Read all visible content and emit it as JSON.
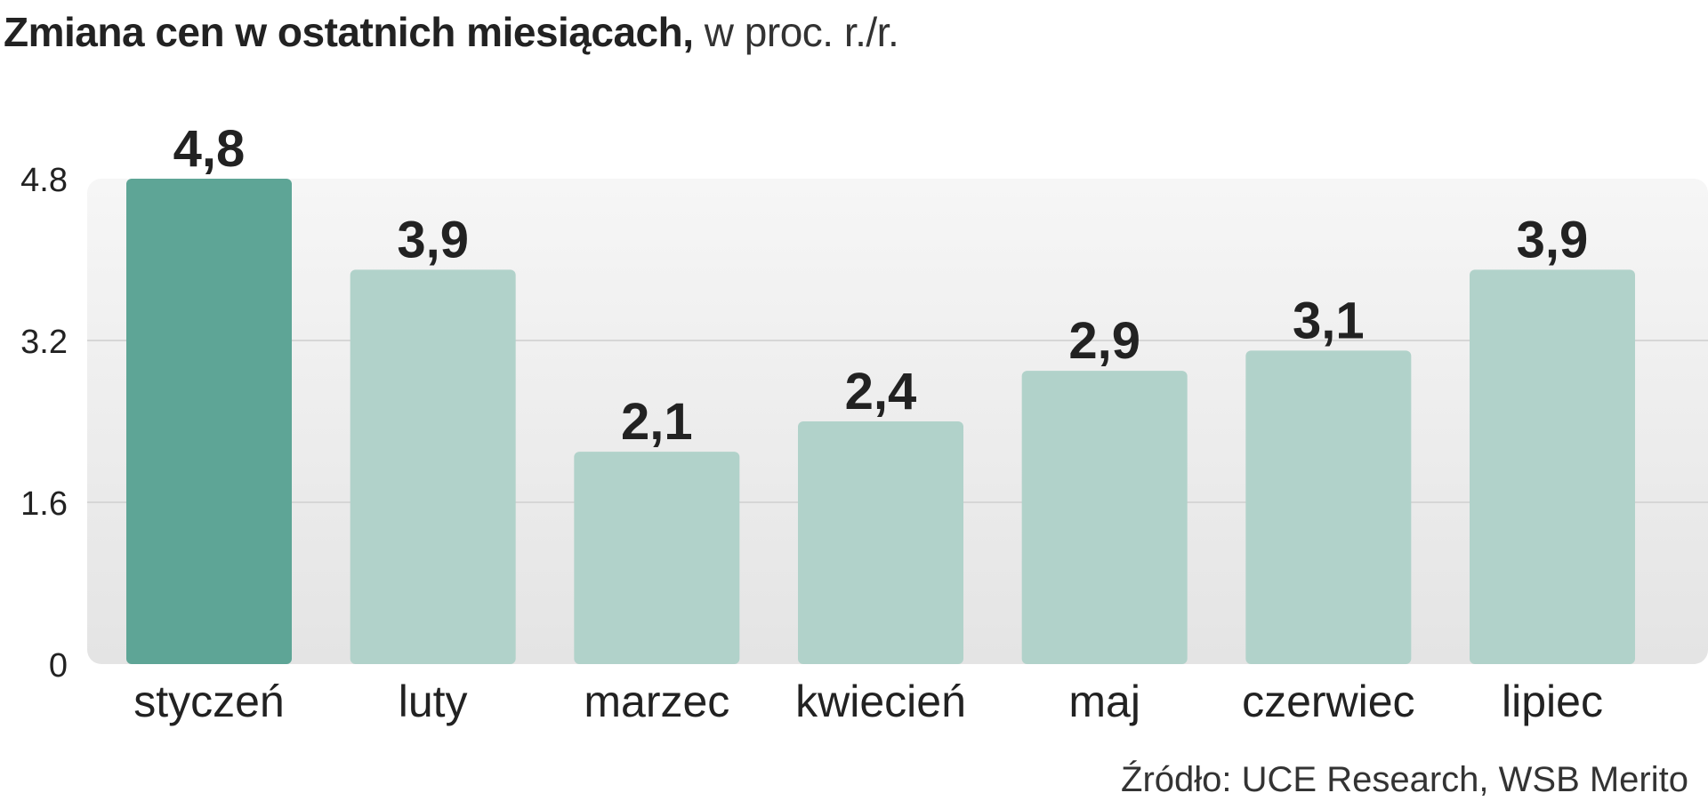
{
  "title": "Zmiana cen w ostatnich miesiącach,",
  "subtitle": "w proc. r./r.",
  "source": "Źródło: UCE Research, WSB Merito",
  "chart_data": {
    "type": "bar",
    "title": "Zmiana cen w ostatnich miesiącach,",
    "subtitle": "w proc. r./r.",
    "categories": [
      "styczeń",
      "luty",
      "marzec",
      "kwiecień",
      "maj",
      "czerwiec",
      "lipiec"
    ],
    "values": [
      4.8,
      3.9,
      2.1,
      2.4,
      2.9,
      3.1,
      3.9
    ],
    "value_labels": [
      "4,8",
      "3,9",
      "2,1",
      "2,4",
      "2,9",
      "3,1",
      "3,9"
    ],
    "y_ticks": [
      0,
      1.6,
      3.2,
      4.8
    ],
    "y_tick_labels": [
      "0",
      "1.6",
      "3.2",
      "4.8"
    ],
    "ylim": [
      0,
      4.8
    ],
    "grid": true,
    "legend": "none",
    "highlight_index": 0,
    "colors": {
      "highlight": "#5ea596",
      "bar": "#b1d2ca",
      "panel_top": "#f6f6f6",
      "panel_bottom": "#e4e4e4",
      "grid": "#d6d6d6",
      "value_label": "#222222",
      "axis_label": "#222222"
    }
  }
}
